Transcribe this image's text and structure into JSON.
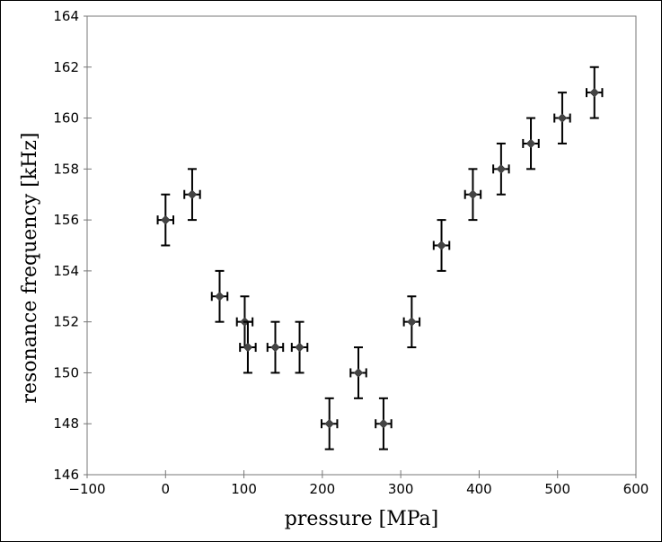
{
  "chart_data": {
    "type": "scatter",
    "xlabel": "pressure [MPa]",
    "ylabel": "resonance frequency [kHz]",
    "xlim": [
      -100,
      600
    ],
    "ylim": [
      146,
      164
    ],
    "xticks": [
      -100,
      0,
      100,
      200,
      300,
      400,
      500,
      600
    ],
    "yticks": [
      146,
      148,
      150,
      152,
      154,
      156,
      158,
      160,
      162,
      164
    ],
    "xtick_labels": [
      "−100",
      "0",
      "100",
      "200",
      "300",
      "400",
      "500",
      "600"
    ],
    "ytick_labels": [
      "146",
      "148",
      "150",
      "152",
      "154",
      "156",
      "158",
      "160",
      "162",
      "164"
    ],
    "grid": false,
    "points": [
      {
        "x": 0,
        "y": 156,
        "xerr": 10,
        "yerr": 1
      },
      {
        "x": 34,
        "y": 157,
        "xerr": 10,
        "yerr": 1
      },
      {
        "x": 69,
        "y": 153,
        "xerr": 10,
        "yerr": 1
      },
      {
        "x": 101,
        "y": 152,
        "xerr": 10,
        "yerr": 1
      },
      {
        "x": 105,
        "y": 151,
        "xerr": 10,
        "yerr": 1
      },
      {
        "x": 140,
        "y": 151,
        "xerr": 10,
        "yerr": 1
      },
      {
        "x": 171,
        "y": 151,
        "xerr": 10,
        "yerr": 1
      },
      {
        "x": 209,
        "y": 148,
        "xerr": 10,
        "yerr": 1
      },
      {
        "x": 246,
        "y": 150,
        "xerr": 10,
        "yerr": 1
      },
      {
        "x": 278,
        "y": 148,
        "xerr": 10,
        "yerr": 1
      },
      {
        "x": 314,
        "y": 152,
        "xerr": 10,
        "yerr": 1
      },
      {
        "x": 352,
        "y": 155,
        "xerr": 10,
        "yerr": 1
      },
      {
        "x": 392,
        "y": 157,
        "xerr": 10,
        "yerr": 1
      },
      {
        "x": 428,
        "y": 158,
        "xerr": 10,
        "yerr": 1
      },
      {
        "x": 466,
        "y": 159,
        "xerr": 10,
        "yerr": 1
      },
      {
        "x": 506,
        "y": 160,
        "xerr": 10,
        "yerr": 1
      },
      {
        "x": 547,
        "y": 161,
        "xerr": 10,
        "yerr": 1
      }
    ],
    "marker_color": "#444444",
    "errorbar_color": "#000000"
  }
}
